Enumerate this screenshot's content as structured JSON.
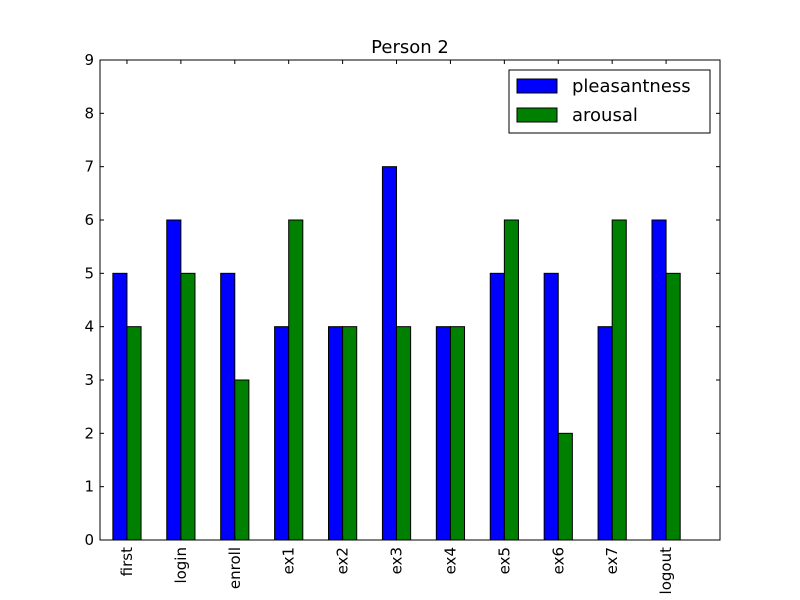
{
  "chart_data": {
    "type": "bar",
    "title": "Person 2",
    "xlabel": "",
    "ylabel": "",
    "categories": [
      "first",
      "login",
      "enroll",
      "ex1",
      "ex2",
      "ex3",
      "ex4",
      "ex5",
      "ex6",
      "ex7",
      "logout"
    ],
    "series": [
      {
        "name": "pleasantness",
        "color": "#0000ff",
        "values": [
          5,
          6,
          5,
          4,
          4,
          7,
          4,
          5,
          5,
          4,
          6
        ]
      },
      {
        "name": "arousal",
        "color": "#008000",
        "values": [
          4,
          5,
          3,
          6,
          4,
          4,
          4,
          6,
          2,
          6,
          5
        ]
      }
    ],
    "ylim": [
      0,
      9
    ],
    "yticks": [
      0,
      1,
      2,
      3,
      4,
      5,
      6,
      7,
      8,
      9
    ],
    "grid": false,
    "legend": {
      "placement": "top-right"
    }
  }
}
